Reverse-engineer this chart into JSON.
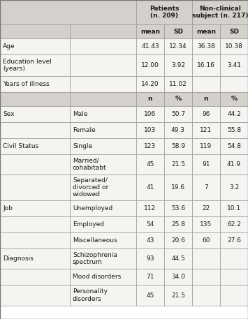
{
  "continuous_rows": [
    [
      "Age",
      "",
      "41.43",
      "12.34",
      "36.38",
      "10.38"
    ],
    [
      "Education level\n(years)",
      "",
      "12.00",
      "3.92",
      "16.16",
      "3.41"
    ],
    [
      "Years of illness",
      "",
      "14.20",
      "11.02",
      "",
      ""
    ]
  ],
  "categorical_rows": [
    [
      "Sex",
      "Male",
      "106",
      "50.7",
      "96",
      "44.2"
    ],
    [
      "",
      "Female",
      "103",
      "49.3",
      "121",
      "55.8"
    ],
    [
      "Civil Status",
      "Single",
      "123",
      "58.9",
      "119",
      "54.8"
    ],
    [
      "",
      "Married/\ncohabitabt",
      "45",
      "21.5",
      "91",
      "41.9"
    ],
    [
      "",
      "Separated/\ndivorced or\nwidowed",
      "41",
      "19.6",
      "7",
      "3.2"
    ],
    [
      "Job",
      "Unemployed",
      "112",
      "53.6",
      "22",
      "10.1"
    ],
    [
      "",
      "Employed",
      "54",
      "25.8",
      "135",
      "62.2"
    ],
    [
      "",
      "Miscellaneous",
      "43",
      "20.6",
      "60",
      "27.6"
    ],
    [
      "Diagnosis",
      "Schizophrenia\nspectrum",
      "93",
      "44.5",
      "",
      ""
    ],
    [
      "",
      "Mood disorders",
      "71",
      "34.0",
      "",
      ""
    ],
    [
      "",
      "Personality\ndisorders",
      "45",
      "21.5",
      "",
      ""
    ]
  ],
  "bg_header": "#d4d0cb",
  "bg_white": "#f5f4f0",
  "bg_white2": "#ffffff",
  "text_color": "#1a1a1a",
  "border_color": "#999999",
  "figsize": [
    3.55,
    4.57
  ],
  "dpi": 100
}
